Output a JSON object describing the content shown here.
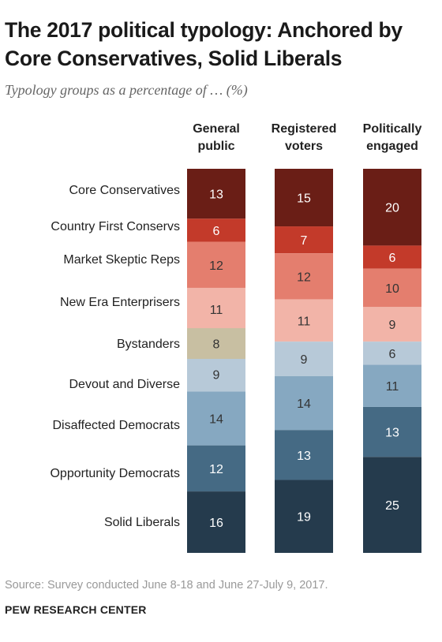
{
  "title": "The 2017 political typology: Anchored by Core Conservatives, Solid Liberals",
  "subtitle": "Typology groups as a percentage of … (%)",
  "source": "Source: Survey conducted June 8-18 and June 27-July 9, 2017.",
  "organization": "PEW RESEARCH CENTER",
  "chart_data": {
    "type": "bar",
    "orientation": "stacked-column",
    "title": "The 2017 political typology: Anchored by Core Conservatives, Solid Liberals",
    "subtitle": "Typology groups as a percentage of … (%)",
    "columns": [
      {
        "label": [
          "General",
          "public"
        ]
      },
      {
        "label": [
          "Registered",
          "voters"
        ]
      },
      {
        "label": [
          "Politically",
          "engaged"
        ]
      }
    ],
    "categories": [
      "General public",
      "Registered voters",
      "Politically engaged"
    ],
    "series": [
      {
        "name": "Core Conservatives",
        "color": "#6a1e16",
        "text_color": "#ffffff",
        "values": [
          13,
          15,
          20
        ]
      },
      {
        "name": "Country First Conservs",
        "color": "#c33a2a",
        "text_color": "#ffffff",
        "values": [
          6,
          7,
          6
        ]
      },
      {
        "name": "Market Skeptic Reps",
        "color": "#e47e6e",
        "text_color": "#333333",
        "values": [
          12,
          12,
          10
        ]
      },
      {
        "name": "New Era Enterprisers",
        "color": "#f2b4a8",
        "text_color": "#333333",
        "values": [
          11,
          11,
          9
        ]
      },
      {
        "name": "Bystanders",
        "color": "#c8bfa2",
        "text_color": "#333333",
        "values": [
          8,
          null,
          null
        ]
      },
      {
        "name": "Devout and Diverse",
        "color": "#b7c9d8",
        "text_color": "#333333",
        "values": [
          9,
          9,
          6
        ]
      },
      {
        "name": "Disaffected Democrats",
        "color": "#86a8c1",
        "text_color": "#333333",
        "values": [
          14,
          14,
          11
        ]
      },
      {
        "name": "Opportunity Democrats",
        "color": "#456a84",
        "text_color": "#ffffff",
        "values": [
          12,
          13,
          13
        ]
      },
      {
        "name": "Solid Liberals",
        "color": "#253b4d",
        "text_color": "#ffffff",
        "values": [
          16,
          19,
          25
        ]
      }
    ],
    "group_labels": [
      "Core Conservatives",
      "Country First Conservs",
      "Market Skeptic Reps",
      "New Era Enterprisers",
      "Bystanders",
      "Devout and Diverse",
      "Disaffected Democrats",
      "Opportunity Democrats",
      "Solid Liberals"
    ],
    "republican_groups": [
      "Core Conservatives",
      "Country First Conservs",
      "Market Skeptic Reps",
      "New Era Enterprisers"
    ],
    "democratic_groups": [
      "Devout and Diverse",
      "Disaffected Democrats",
      "Opportunity Democrats",
      "Solid Liberals"
    ],
    "unit": "%",
    "xlabel": "",
    "ylabel": "",
    "grid": false,
    "legend": "none"
  }
}
